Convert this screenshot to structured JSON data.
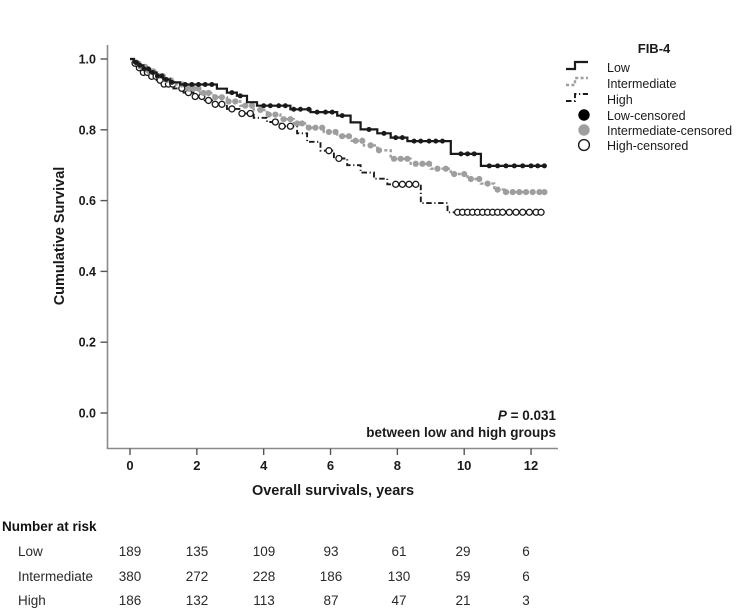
{
  "chart_data": {
    "type": "line",
    "subtype": "kaplan-meier-step",
    "title": "",
    "xlabel": "Overall survivals, years",
    "ylabel": "Cumulative Survival",
    "xticks": [
      0,
      2,
      4,
      6,
      8,
      10,
      12
    ],
    "ytick_labels": [
      "0.0",
      "0.2",
      "0.4",
      "0.6",
      "0.8",
      "1.0"
    ],
    "xlim": [
      -0.7,
      12.8
    ],
    "ylim": [
      -0.1,
      1.05
    ],
    "grid": false,
    "axis_color": "#8a8a8a",
    "annotation": {
      "p_symbol": "P",
      "p_rest": " = 0.031",
      "line2": "between low and high groups"
    },
    "legend": {
      "title": "FIB-4",
      "position": "top-right-outside",
      "items": [
        {
          "label": "Low",
          "type": "line",
          "style": "solid",
          "color": "#1a1a1a"
        },
        {
          "label": "Intermediate",
          "type": "line",
          "style": "dotted",
          "color": "#9e9e9e"
        },
        {
          "label": "High",
          "type": "line",
          "style": "dashdot",
          "color": "#1a1a1a"
        },
        {
          "label": "Low-censored",
          "type": "marker",
          "marker": "filled-circle",
          "color": "#000000"
        },
        {
          "label": "Intermediate-censored",
          "type": "marker",
          "marker": "filled-circle",
          "color": "#9e9e9e"
        },
        {
          "label": "High-censored",
          "type": "marker",
          "marker": "open-circle",
          "color": "#1a1a1a"
        }
      ]
    },
    "series": [
      {
        "name": "High",
        "style": "dashdot",
        "color": "#1a1a1a",
        "censor_marker": "open",
        "steps": [
          [
            0,
            1.0
          ],
          [
            0.12,
            0.988
          ],
          [
            0.25,
            0.975
          ],
          [
            0.4,
            0.962
          ],
          [
            0.6,
            0.951
          ],
          [
            0.8,
            0.94
          ],
          [
            1.0,
            0.929
          ],
          [
            1.3,
            0.917
          ],
          [
            1.6,
            0.905
          ],
          [
            1.9,
            0.894
          ],
          [
            2.2,
            0.883
          ],
          [
            2.5,
            0.872
          ],
          [
            2.9,
            0.859
          ],
          [
            3.3,
            0.846
          ],
          [
            3.7,
            0.834
          ],
          [
            4.1,
            0.822
          ],
          [
            4.5,
            0.81
          ],
          [
            5.0,
            0.79
          ],
          [
            5.3,
            0.766
          ],
          [
            5.7,
            0.741
          ],
          [
            6.1,
            0.719
          ],
          [
            6.5,
            0.7
          ],
          [
            6.9,
            0.679
          ],
          [
            7.3,
            0.662
          ],
          [
            7.7,
            0.646
          ],
          [
            8.7,
            0.593
          ],
          [
            9.5,
            0.567
          ],
          [
            12.4,
            0.567
          ]
        ],
        "censor_times": [
          0.15,
          0.28,
          0.4,
          0.52,
          0.65,
          0.78,
          0.9,
          1.02,
          1.15,
          1.28,
          1.55,
          1.75,
          1.95,
          2.15,
          2.35,
          2.55,
          2.75,
          3.05,
          3.35,
          3.6,
          4.35,
          4.55,
          4.8,
          5.95,
          6.25,
          7.95,
          8.15,
          8.35,
          8.55,
          9.8,
          9.95,
          10.1,
          10.25,
          10.4,
          10.55,
          10.7,
          10.85,
          11.0,
          11.15,
          11.35,
          11.55,
          11.75,
          11.95,
          12.15,
          12.3
        ]
      },
      {
        "name": "Intermediate",
        "style": "dotted",
        "color": "#9e9e9e",
        "censor_marker": "filled",
        "steps": [
          [
            0,
            1.0
          ],
          [
            0.15,
            0.99
          ],
          [
            0.3,
            0.978
          ],
          [
            0.5,
            0.965
          ],
          [
            0.75,
            0.952
          ],
          [
            1.0,
            0.94
          ],
          [
            1.3,
            0.928
          ],
          [
            1.7,
            0.916
          ],
          [
            2.1,
            0.904
          ],
          [
            2.5,
            0.892
          ],
          [
            2.9,
            0.88
          ],
          [
            3.3,
            0.868
          ],
          [
            3.7,
            0.856
          ],
          [
            4.1,
            0.843
          ],
          [
            4.5,
            0.83
          ],
          [
            4.9,
            0.818
          ],
          [
            5.3,
            0.806
          ],
          [
            5.8,
            0.794
          ],
          [
            6.2,
            0.782
          ],
          [
            6.6,
            0.769
          ],
          [
            7.0,
            0.756
          ],
          [
            7.4,
            0.742
          ],
          [
            7.8,
            0.718
          ],
          [
            8.4,
            0.704
          ],
          [
            9.0,
            0.69
          ],
          [
            9.6,
            0.675
          ],
          [
            10.1,
            0.661
          ],
          [
            10.5,
            0.648
          ],
          [
            10.9,
            0.631
          ],
          [
            11.2,
            0.624
          ],
          [
            12.45,
            0.624
          ]
        ],
        "censor_times": [
          0.2,
          0.32,
          0.45,
          0.58,
          0.7,
          0.85,
          0.98,
          1.1,
          1.22,
          1.55,
          1.75,
          1.9,
          2.05,
          2.2,
          2.35,
          2.55,
          2.75,
          2.95,
          3.15,
          3.45,
          3.65,
          3.9,
          4.15,
          4.35,
          4.6,
          4.8,
          5.0,
          5.15,
          5.35,
          5.55,
          5.75,
          5.95,
          6.15,
          6.35,
          6.55,
          6.75,
          6.95,
          7.2,
          7.45,
          7.9,
          8.1,
          8.3,
          8.55,
          8.75,
          8.95,
          9.2,
          9.45,
          9.7,
          10.0,
          10.2,
          10.45,
          10.7,
          11.0,
          11.25,
          11.45,
          11.65,
          11.85,
          12.05,
          12.25,
          12.4
        ]
      },
      {
        "name": "Low",
        "style": "solid",
        "color": "#1a1a1a",
        "censor_marker": "filled",
        "steps": [
          [
            0,
            1.0
          ],
          [
            0.12,
            0.99
          ],
          [
            0.25,
            0.982
          ],
          [
            0.4,
            0.972
          ],
          [
            0.6,
            0.962
          ],
          [
            0.8,
            0.952
          ],
          [
            1.0,
            0.942
          ],
          [
            1.2,
            0.934
          ],
          [
            1.5,
            0.928
          ],
          [
            2.6,
            0.916
          ],
          [
            2.9,
            0.905
          ],
          [
            3.2,
            0.896
          ],
          [
            3.5,
            0.878
          ],
          [
            3.8,
            0.868
          ],
          [
            4.8,
            0.858
          ],
          [
            5.4,
            0.85
          ],
          [
            6.2,
            0.84
          ],
          [
            6.6,
            0.821
          ],
          [
            6.9,
            0.801
          ],
          [
            7.4,
            0.79
          ],
          [
            7.8,
            0.778
          ],
          [
            8.3,
            0.768
          ],
          [
            9.6,
            0.732
          ],
          [
            10.5,
            0.698
          ],
          [
            12.45,
            0.698
          ]
        ],
        "censor_times": [
          0.18,
          0.3,
          0.42,
          0.55,
          0.68,
          0.82,
          0.95,
          1.08,
          1.25,
          1.65,
          1.85,
          2.05,
          2.25,
          2.45,
          3.05,
          3.3,
          4.0,
          4.2,
          4.45,
          4.65,
          4.9,
          5.1,
          5.35,
          5.6,
          5.85,
          6.05,
          6.35,
          7.15,
          7.6,
          7.95,
          8.15,
          8.5,
          8.7,
          8.95,
          9.15,
          9.35,
          9.9,
          10.1,
          10.3,
          10.75,
          11.0,
          11.25,
          11.5,
          11.75,
          12.0,
          12.2,
          12.4
        ]
      }
    ]
  },
  "risk_table": {
    "title": "Number at risk",
    "time_points": [
      0,
      2,
      4,
      6,
      8,
      10,
      12
    ],
    "rows": [
      {
        "label": "Low",
        "values": [
          "189",
          "135",
          "109",
          "93",
          "61",
          "29",
          "6"
        ]
      },
      {
        "label": "Intermediate",
        "values": [
          "380",
          "272",
          "228",
          "186",
          "130",
          "59",
          "6"
        ]
      },
      {
        "label": "High",
        "values": [
          "186",
          "132",
          "113",
          "87",
          "47",
          "21",
          "3"
        ]
      }
    ]
  },
  "colors": {
    "black": "#1a1a1a",
    "gray": "#9e9e9e",
    "axis": "#8a8a8a",
    "background": "#ffffff"
  }
}
